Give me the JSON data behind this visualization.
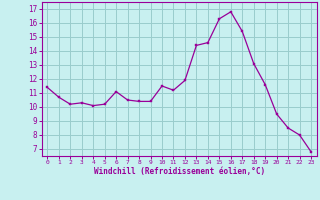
{
  "x": [
    0,
    1,
    2,
    3,
    4,
    5,
    6,
    7,
    8,
    9,
    10,
    11,
    12,
    13,
    14,
    15,
    16,
    17,
    18,
    19,
    20,
    21,
    22,
    23
  ],
  "y": [
    11.4,
    10.7,
    10.2,
    10.3,
    10.1,
    10.2,
    11.1,
    10.5,
    10.4,
    10.4,
    11.5,
    11.2,
    11.9,
    14.4,
    14.6,
    16.3,
    16.8,
    15.4,
    13.1,
    11.6,
    9.5,
    8.5,
    8.0,
    6.8
  ],
  "line_color": "#990099",
  "marker_color": "#990099",
  "bg_color": "#c8f0f0",
  "grid_color": "#99cccc",
  "xlabel": "Windchill (Refroidissement éolien,°C)",
  "xlim": [
    -0.5,
    23.5
  ],
  "ylim": [
    6.5,
    17.5
  ],
  "yticks": [
    7,
    8,
    9,
    10,
    11,
    12,
    13,
    14,
    15,
    16,
    17
  ],
  "xticks": [
    0,
    1,
    2,
    3,
    4,
    5,
    6,
    7,
    8,
    9,
    10,
    11,
    12,
    13,
    14,
    15,
    16,
    17,
    18,
    19,
    20,
    21,
    22,
    23
  ],
  "tick_color": "#990099",
  "label_color": "#990099"
}
